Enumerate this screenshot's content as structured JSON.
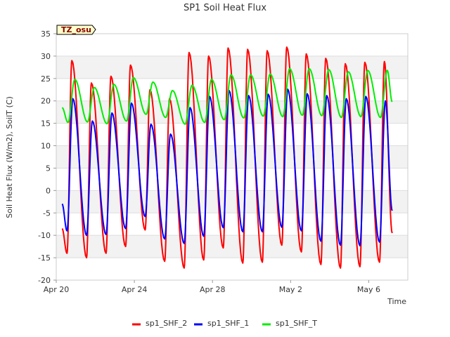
{
  "chart_data": {
    "type": "line",
    "title": "SP1 Soil Heat Flux",
    "xlabel": "Time",
    "ylabel": "Soil Heat Flux (W/m2), SoilT (C)",
    "annotation": "TZ_osu",
    "ylim": [
      -20,
      35
    ],
    "xlim_days": [
      0,
      18
    ],
    "yticks": [
      -20,
      -15,
      -10,
      -5,
      0,
      5,
      10,
      15,
      20,
      25,
      30,
      35
    ],
    "xticks": [
      {
        "label": "Apr 20",
        "day": 0
      },
      {
        "label": "Apr 24",
        "day": 4
      },
      {
        "label": "Apr 28",
        "day": 8
      },
      {
        "label": "May 2",
        "day": 12
      },
      {
        "label": "May 6",
        "day": 16
      }
    ],
    "grid": "horizontal-bands",
    "legend_position": "bottom",
    "colors": {
      "sp1_SHF_2": "#ff0000",
      "sp1_SHF_1": "#0000ff",
      "sp1_SHF_T": "#00ee00"
    },
    "series": [
      {
        "name": "sp1_SHF_2",
        "color": "#ff0000",
        "x": [
          0.3,
          0.55,
          0.8,
          1.55,
          1.8,
          2.55,
          2.8,
          3.55,
          3.8,
          4.55,
          4.8,
          5.55,
          5.8,
          6.55,
          6.8,
          7.55,
          7.8,
          8.55,
          8.8,
          9.55,
          9.8,
          10.55,
          10.8,
          11.55,
          11.8,
          12.55,
          12.8,
          13.55,
          13.8,
          14.55,
          14.8,
          15.55,
          15.8,
          16.55,
          16.8,
          17.2
        ],
        "y": [
          -8.5,
          -14,
          29,
          -15,
          24,
          -14,
          25.5,
          -12.5,
          28,
          -8.8,
          22.5,
          -15.8,
          20.5,
          -17.3,
          30.8,
          -15.5,
          30,
          -12.8,
          31.8,
          -16.2,
          31.5,
          -16,
          31.2,
          -12.2,
          32,
          -13.7,
          30.5,
          -16.5,
          29.5,
          -17.3,
          28.3,
          -17,
          28.6,
          -16,
          28.8,
          -9.5
        ]
      },
      {
        "name": "sp1_SHF_1",
        "color": "#0000ff",
        "x": [
          0.3,
          0.55,
          0.85,
          1.55,
          1.85,
          2.55,
          2.85,
          3.55,
          3.85,
          4.55,
          4.85,
          5.55,
          5.85,
          6.55,
          6.85,
          7.55,
          7.85,
          8.55,
          8.85,
          9.55,
          9.85,
          10.55,
          10.85,
          11.55,
          11.85,
          12.55,
          12.85,
          13.55,
          13.85,
          14.55,
          14.85,
          15.55,
          15.85,
          16.55,
          16.85,
          17.2
        ],
        "y": [
          -3,
          -9,
          20.5,
          -10,
          15.5,
          -9.8,
          17.3,
          -8.5,
          19.5,
          -5.8,
          14.8,
          -10.8,
          12.6,
          -11.8,
          18.5,
          -10.2,
          21,
          -8.3,
          22.3,
          -9.2,
          21.2,
          -9.2,
          21.5,
          -8.2,
          22.6,
          -9,
          21.6,
          -11.3,
          21.2,
          -12.2,
          20.5,
          -12.3,
          21,
          -11.5,
          20,
          -4.5
        ]
      },
      {
        "name": "sp1_SHF_T",
        "color": "#00ee00",
        "x": [
          0.3,
          0.6,
          0.95,
          1.6,
          1.95,
          2.6,
          2.95,
          3.6,
          3.95,
          4.6,
          4.95,
          5.6,
          5.95,
          6.6,
          6.95,
          7.6,
          7.95,
          8.6,
          8.95,
          9.6,
          9.95,
          10.6,
          10.95,
          11.6,
          11.95,
          12.6,
          12.95,
          13.6,
          13.95,
          14.6,
          14.95,
          15.6,
          15.95,
          16.6,
          16.95,
          17.2
        ],
        "y": [
          18.5,
          15.2,
          24.8,
          15.3,
          23,
          14.9,
          23.7,
          15.5,
          25.2,
          17,
          24.2,
          16.3,
          22.3,
          14.8,
          23.5,
          15.2,
          24.8,
          15.8,
          25.8,
          16.2,
          25.8,
          16.6,
          26,
          16.5,
          27.2,
          16.8,
          27.2,
          16.7,
          27,
          16.3,
          26.5,
          16.5,
          26.8,
          16.3,
          26.8,
          19.8
        ]
      }
    ]
  }
}
